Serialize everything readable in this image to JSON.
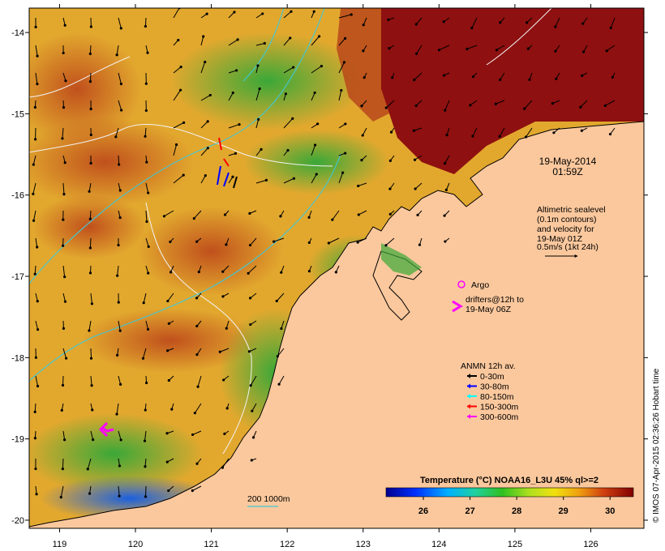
{
  "map": {
    "lon_ticks": [
      "119",
      "120",
      "121",
      "122",
      "123",
      "124",
      "125",
      "126"
    ],
    "lat_ticks": [
      "-14",
      "-15",
      "-16",
      "-17",
      "-18",
      "-19",
      "-20"
    ],
    "lon_range": [
      118.6,
      126.7
    ],
    "lat_range": [
      -20.1,
      -13.7
    ],
    "colors": {
      "land": "#fbc89d",
      "ocean_warm": "#c84a16",
      "ocean_hot": "#8b0a0a",
      "ocean_mid": "#e6c628",
      "ocean_cool": "#2a9a32"
    }
  },
  "timestamp": {
    "date": "19-May-2014",
    "time": "01:59Z"
  },
  "altimetry_note": {
    "lines": [
      "Altimetric sealevel",
      "(0.1m contours)",
      "and velocity for",
      "19-May 01Z"
    ],
    "scale_label": "0.5m/s (1kt 24h)"
  },
  "argo": {
    "label": "Argo",
    "color": "#ff00ff"
  },
  "drifters": {
    "lines": [
      "drifters@12h to",
      "19-May 06Z"
    ],
    "color": "#ff00ff"
  },
  "anmn_legend": {
    "title": "ANMN 12h av.",
    "items": [
      {
        "label": "0-30m",
        "color": "#000000"
      },
      {
        "label": "30-80m",
        "color": "#0000ff"
      },
      {
        "label": "80-150m",
        "color": "#00ffff"
      },
      {
        "label": "150-300m",
        "color": "#ff0000"
      },
      {
        "label": "300-600m",
        "color": "#ff00ff"
      }
    ]
  },
  "depth_contours": {
    "label": "200  1000m"
  },
  "colorbar": {
    "title": "Temperature (°C) NOAA16_L3U 45% ql>=2",
    "ticks": [
      "26",
      "27",
      "28",
      "29",
      "30"
    ],
    "range": [
      25.2,
      30.5
    ]
  },
  "credit": "© IMOS 07-Apr-2015 02:36:26 Hobart time"
}
